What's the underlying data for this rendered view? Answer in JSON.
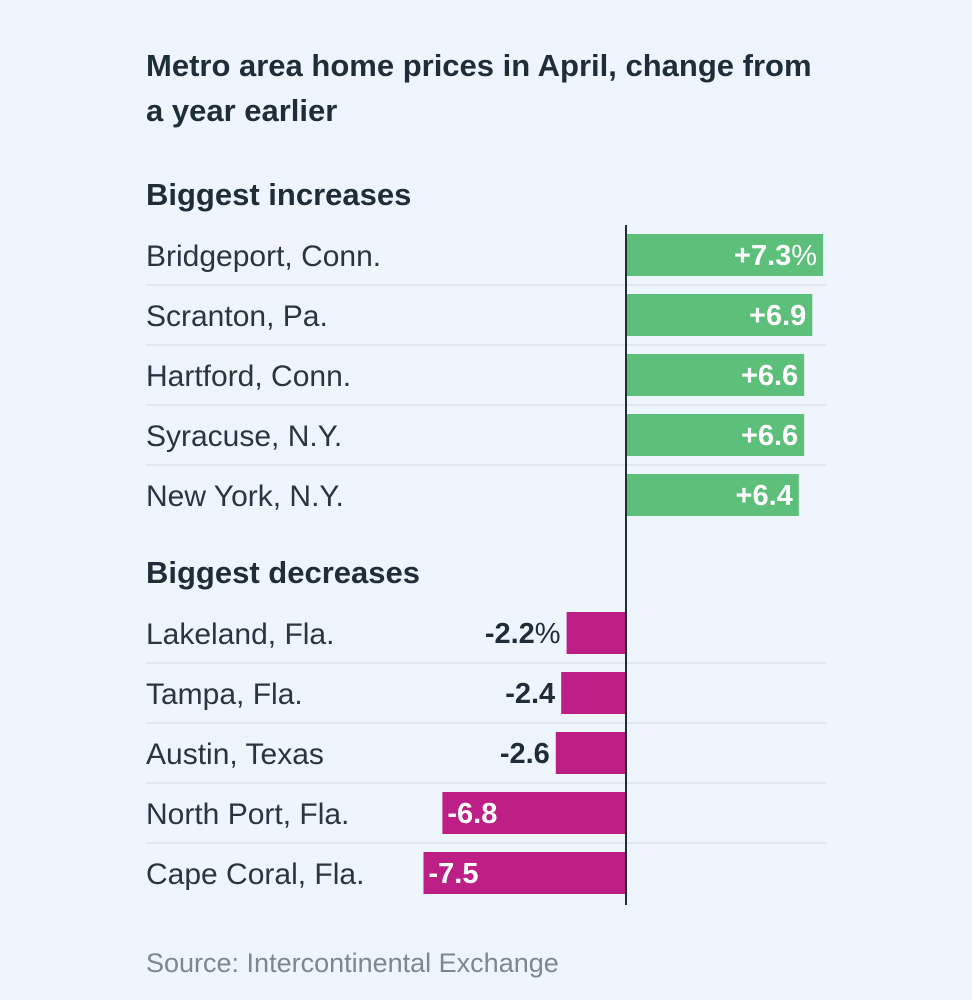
{
  "chart_data": {
    "type": "bar",
    "orientation": "horizontal",
    "title_lines": [
      "Metro area home prices in April, change from",
      "a year earlier"
    ],
    "unit": "%",
    "source": "Source: Intercontinental Exchange",
    "colors": {
      "increase": "#5cbf7a",
      "decrease": "#bd1f86",
      "axis": "#1f2d38"
    },
    "groups": [
      {
        "name": "Biggest increases",
        "items": [
          {
            "label": "Bridgeport, Conn.",
            "value": 7.3,
            "display": "+7.3",
            "show_unit": true
          },
          {
            "label": "Scranton, Pa.",
            "value": 6.9,
            "display": "+6.9",
            "show_unit": false
          },
          {
            "label": "Hartford, Conn.",
            "value": 6.6,
            "display": "+6.6",
            "show_unit": false
          },
          {
            "label": "Syracuse, N.Y.",
            "value": 6.6,
            "display": "+6.6",
            "show_unit": false
          },
          {
            "label": "New York, N.Y.",
            "value": 6.4,
            "display": "+6.4",
            "show_unit": false
          }
        ]
      },
      {
        "name": "Biggest decreases",
        "items": [
          {
            "label": "Lakeland, Fla.",
            "value": -2.2,
            "display": "-2.2",
            "show_unit": true
          },
          {
            "label": "Tampa, Fla.",
            "value": -2.4,
            "display": "-2.4",
            "show_unit": false
          },
          {
            "label": "Austin, Texas",
            "value": -2.6,
            "display": "-2.6",
            "show_unit": false
          },
          {
            "label": "North Port, Fla.",
            "value": -6.8,
            "display": "-6.8",
            "show_unit": false
          },
          {
            "label": "Cape Coral, Fla.",
            "value": -7.5,
            "display": "-7.5",
            "show_unit": false
          }
        ]
      }
    ]
  }
}
